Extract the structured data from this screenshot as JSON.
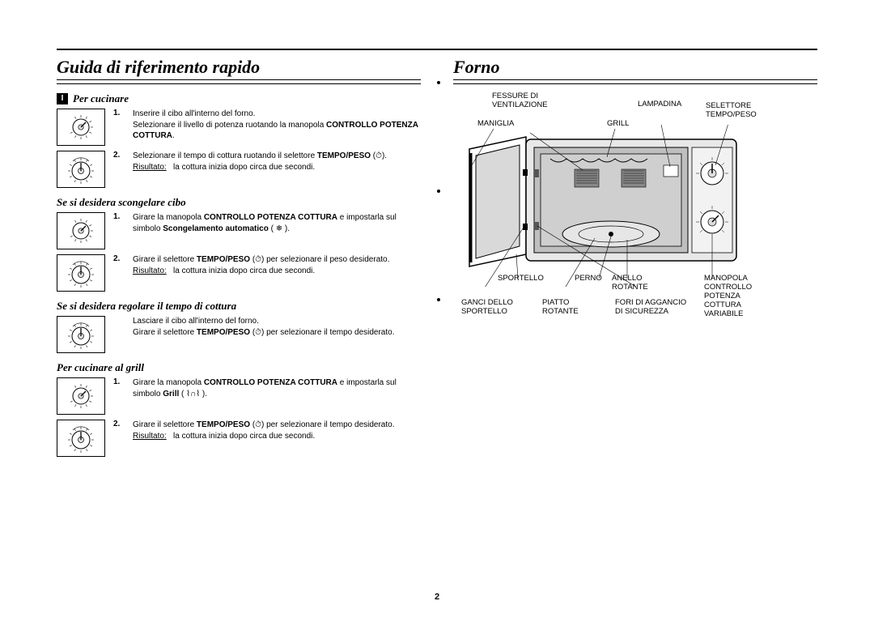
{
  "page_number": "2",
  "left": {
    "title": "Guida di riferimento rapido",
    "badge": "I",
    "sections": [
      {
        "heading": "Per cucinare",
        "steps": [
          {
            "n": "1.",
            "html": "Inserire il cibo all'interno del forno.<br>Selezionare il livello di potenza ruotando la manopola <span class='b'>CONTROLLO POTENZA COTTURA</span>.",
            "dial": "power"
          },
          {
            "n": "2.",
            "html": "Selezionare il tempo di cottura ruotando il selettore <span class='b'>TEMPO/PESO</span> (⏱).<br><span class='u'>Risultato:</span>&nbsp;&nbsp;&nbsp;la cottura inizia dopo circa due secondi.",
            "dial": "time"
          }
        ]
      },
      {
        "heading": "Se si desidera scongelare cibo",
        "steps": [
          {
            "n": "1.",
            "html": "Girare la manopola <span class='b'>CONTROLLO POTENZA COTTURA</span> e impostarla sul simbolo <span class='b'>Scongelamento automatico</span> ( ❄ ).",
            "dial": "power"
          },
          {
            "n": "2.",
            "html": "Girare il selettore <span class='b'>TEMPO/PESO</span> (⏱) per selezionare il peso desiderato.<br><span class='u'>Risultato:</span>&nbsp;&nbsp;&nbsp;la cottura inizia dopo circa due secondi.",
            "dial": "time"
          }
        ]
      },
      {
        "heading": "Se si desidera regolare il tempo di cottura",
        "steps": [
          {
            "n": "",
            "html": "Lasciare il cibo all'interno del forno.<br>Girare il selettore <span class='b'>TEMPO/PESO</span> (⏱) per selezionare il tempo desiderato.",
            "dial": "time"
          }
        ]
      },
      {
        "heading": "Per cucinare al grill",
        "steps": [
          {
            "n": "1.",
            "html": "Girare la manopola <span class='b'>CONTROLLO POTENZA COTTURA</span> e impostarla sul simbolo <span class='b'>Grill</span> ( ⌇∩⌇ ).",
            "dial": "power"
          },
          {
            "n": "2.",
            "html": "Girare il selettore <span class='b'>TEMPO/PESO</span> (⏱) per selezionare il tempo desiderato.<br><span class='u'>Risultato:</span>&nbsp;&nbsp;&nbsp;la cottura inizia dopo circa due secondi.",
            "dial": "time"
          }
        ]
      }
    ]
  },
  "right": {
    "title": "Forno",
    "labels": {
      "fessure": "FESSURE DI\nVENTILAZIONE",
      "lampadina": "LAMPADINA",
      "selettore": "SELETTORE\nTEMPO/PESO",
      "maniglia": "MANIGLIA",
      "grill": "GRILL",
      "sportello": "SPORTELLO",
      "perno": "PERNO",
      "anello": "ANELLO\nROTANTE",
      "manopola": "MANOPOLA\nCONTROLLO\nPOTENZA\nCOTTURA\nVARIABILE",
      "ganci": "GANCI DELLO\nSPORTELLO",
      "piatto": "PIATTO\nROTANTE",
      "fori": "FORI DI AGGANCIO\nDI SICUREZZA"
    }
  },
  "style": {
    "background": "#ffffff",
    "text_color": "#000000",
    "title_font": "Times New Roman italic bold",
    "body_font": "Arial",
    "body_fontsize_pt": 7.5,
    "title_fontsize_pt": 16
  }
}
